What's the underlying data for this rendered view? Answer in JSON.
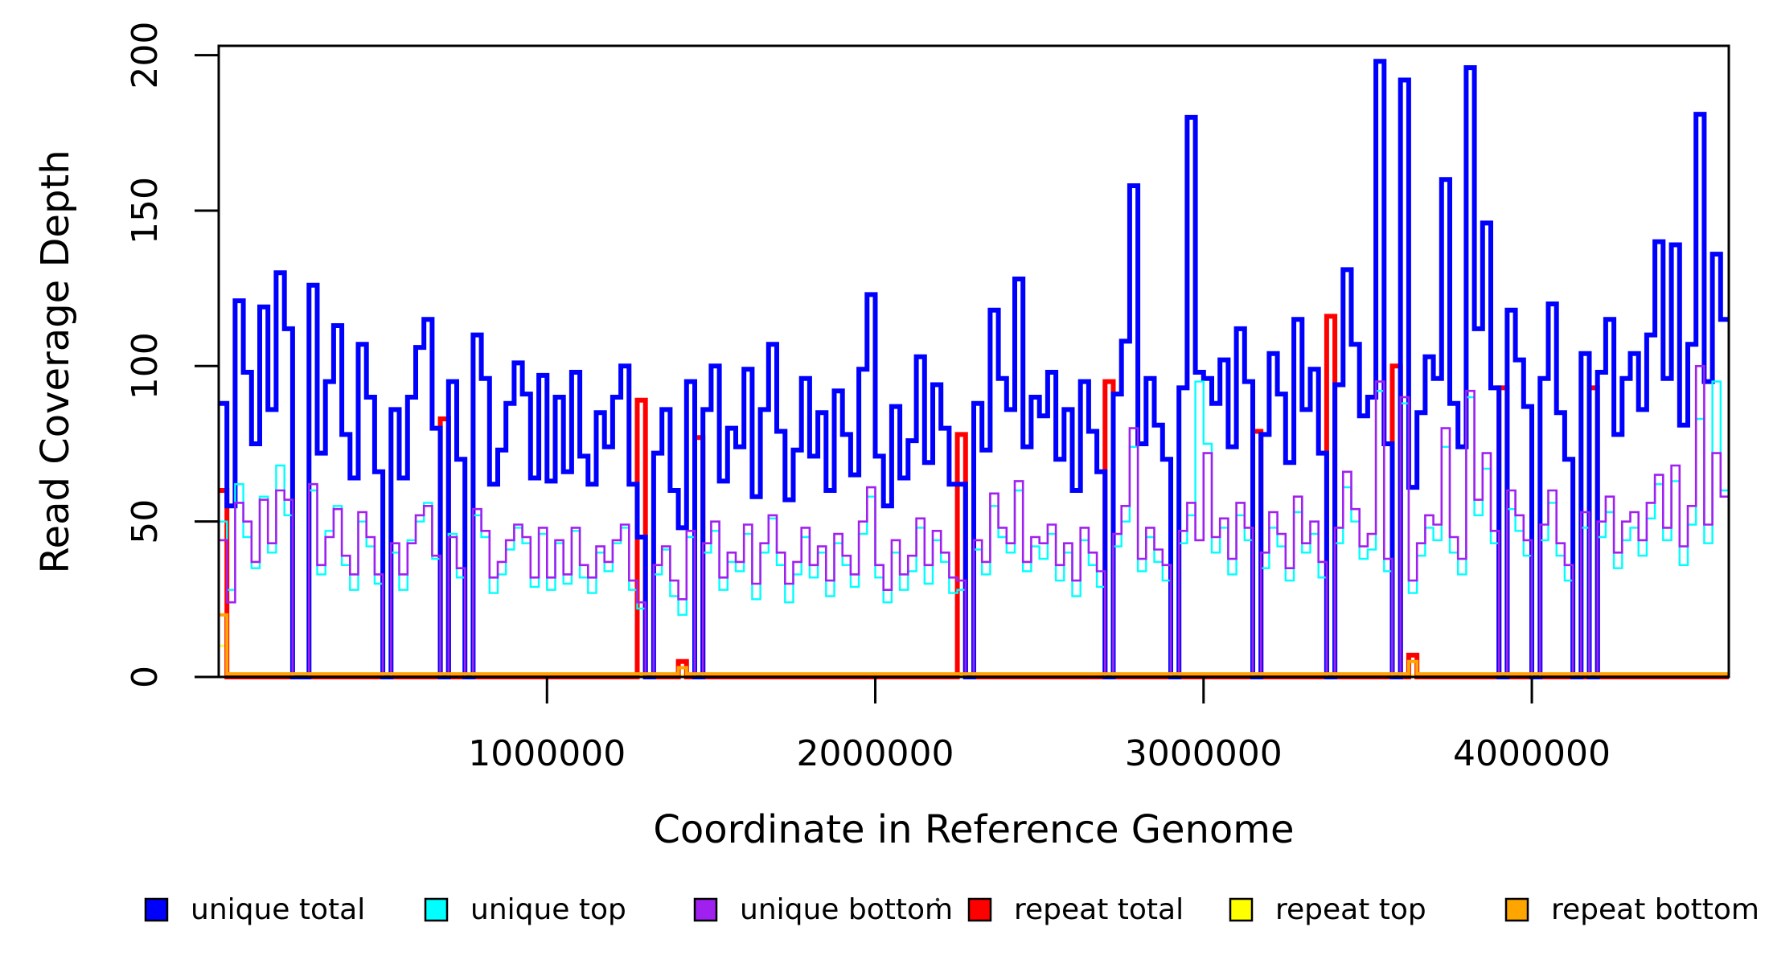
{
  "chart_data": {
    "type": "line",
    "subtype": "step",
    "title": "",
    "xlabel": "Coordinate in Reference Genome",
    "ylabel": "Read Coverage Depth",
    "xlim": [
      0,
      4600000
    ],
    "ylim": [
      0,
      203
    ],
    "grid": false,
    "legend_position": "bottom",
    "x_bin_size": 25000,
    "n_bins": 184,
    "x_ticks": [
      {
        "value": 1000000,
        "label": "1000000"
      },
      {
        "value": 2000000,
        "label": "2000000"
      },
      {
        "value": 3000000,
        "label": "3000000"
      },
      {
        "value": 4000000,
        "label": "4000000"
      }
    ],
    "y_ticks": [
      {
        "value": 0,
        "label": "0"
      },
      {
        "value": 50,
        "label": "50"
      },
      {
        "value": 100,
        "label": "100"
      },
      {
        "value": 150,
        "label": "150"
      },
      {
        "value": 200,
        "label": "200"
      }
    ],
    "series": [
      {
        "name": "unique total",
        "color": "#0000FF",
        "line_width": 6,
        "values": [
          88,
          55,
          121,
          98,
          75,
          119,
          86,
          130,
          112,
          0,
          0,
          126,
          72,
          95,
          113,
          78,
          64,
          107,
          90,
          66,
          0,
          86,
          64,
          90,
          106,
          115,
          80,
          0,
          95,
          70,
          0,
          110,
          96,
          62,
          73,
          88,
          101,
          91,
          64,
          97,
          63,
          90,
          66,
          98,
          71,
          62,
          85,
          74,
          90,
          100,
          62,
          45,
          0,
          72,
          86,
          60,
          48,
          95,
          0,
          86,
          100,
          63,
          80,
          74,
          99,
          58,
          86,
          107,
          79,
          57,
          73,
          96,
          71,
          85,
          60,
          92,
          78,
          65,
          99,
          123,
          71,
          55,
          87,
          64,
          76,
          103,
          69,
          94,
          80,
          62,
          62,
          0,
          88,
          73,
          118,
          96,
          86,
          128,
          74,
          90,
          84,
          98,
          70,
          86,
          60,
          95,
          79,
          66,
          0,
          91,
          108,
          158,
          75,
          96,
          81,
          70,
          0,
          93,
          180,
          98,
          96,
          88,
          102,
          74,
          112,
          95,
          0,
          78,
          104,
          91,
          69,
          115,
          86,
          99,
          72,
          0,
          94,
          131,
          107,
          84,
          90,
          198,
          75,
          0,
          192,
          61,
          85,
          103,
          96,
          160,
          88,
          74,
          196,
          112,
          146,
          93,
          0,
          118,
          102,
          87,
          0,
          96,
          120,
          85,
          70,
          0,
          104,
          0,
          98,
          115,
          78,
          96,
          104,
          86,
          110,
          140,
          96,
          139,
          81,
          107,
          181,
          95,
          136,
          115
        ]
      },
      {
        "name": "unique top",
        "color": "#00FFFF",
        "line_width": 2.4,
        "values": [
          50,
          28,
          62,
          45,
          35,
          58,
          40,
          68,
          52,
          0,
          0,
          60,
          33,
          47,
          55,
          36,
          28,
          50,
          42,
          30,
          0,
          40,
          28,
          44,
          50,
          56,
          38,
          0,
          46,
          32,
          0,
          52,
          45,
          27,
          33,
          41,
          48,
          43,
          29,
          46,
          28,
          43,
          30,
          47,
          32,
          27,
          40,
          34,
          43,
          48,
          28,
          22,
          0,
          33,
          41,
          26,
          20,
          45,
          0,
          40,
          47,
          28,
          37,
          34,
          46,
          25,
          40,
          51,
          36,
          24,
          33,
          45,
          32,
          40,
          26,
          43,
          36,
          29,
          46,
          58,
          32,
          24,
          40,
          28,
          34,
          48,
          30,
          44,
          37,
          27,
          28,
          0,
          41,
          33,
          55,
          45,
          40,
          60,
          34,
          42,
          38,
          46,
          31,
          40,
          26,
          44,
          36,
          29,
          0,
          42,
          50,
          74,
          34,
          45,
          37,
          31,
          0,
          43,
          52,
          95,
          75,
          40,
          48,
          33,
          52,
          44,
          0,
          35,
          48,
          42,
          31,
          53,
          40,
          46,
          32,
          0,
          43,
          61,
          50,
          38,
          41,
          92,
          34,
          0,
          88,
          27,
          39,
          48,
          44,
          74,
          40,
          33,
          90,
          52,
          67,
          43,
          0,
          54,
          47,
          39,
          0,
          44,
          56,
          39,
          31,
          0,
          48,
          0,
          45,
          53,
          35,
          44,
          48,
          39,
          51,
          62,
          44,
          63,
          36,
          49,
          83,
          43,
          95,
          60
        ]
      },
      {
        "name": "unique bottom",
        "color": "#A020F0",
        "line_width": 2.6,
        "values": [
          44,
          24,
          56,
          50,
          37,
          57,
          43,
          60,
          57,
          0,
          0,
          62,
          36,
          45,
          54,
          39,
          33,
          53,
          45,
          33,
          0,
          43,
          33,
          43,
          52,
          55,
          39,
          0,
          45,
          35,
          0,
          54,
          47,
          32,
          37,
          44,
          49,
          45,
          32,
          48,
          32,
          44,
          33,
          48,
          36,
          32,
          42,
          37,
          44,
          49,
          31,
          24,
          0,
          36,
          42,
          31,
          25,
          47,
          0,
          43,
          50,
          32,
          40,
          37,
          49,
          30,
          43,
          52,
          40,
          30,
          37,
          48,
          36,
          42,
          31,
          46,
          39,
          33,
          50,
          61,
          36,
          28,
          44,
          33,
          39,
          51,
          36,
          47,
          40,
          32,
          31,
          0,
          44,
          37,
          59,
          48,
          43,
          63,
          37,
          45,
          43,
          49,
          36,
          43,
          31,
          48,
          40,
          34,
          0,
          46,
          55,
          80,
          38,
          48,
          41,
          36,
          0,
          47,
          56,
          44,
          72,
          45,
          51,
          38,
          56,
          48,
          0,
          40,
          53,
          46,
          35,
          58,
          43,
          50,
          37,
          0,
          48,
          66,
          54,
          42,
          46,
          95,
          38,
          0,
          90,
          31,
          43,
          52,
          49,
          80,
          45,
          38,
          92,
          57,
          72,
          47,
          0,
          60,
          52,
          44,
          0,
          49,
          60,
          43,
          36,
          0,
          53,
          0,
          50,
          58,
          40,
          50,
          53,
          44,
          56,
          65,
          48,
          68,
          42,
          55,
          100,
          49,
          72,
          58
        ]
      },
      {
        "name": "repeat total",
        "color": "#FF0000",
        "line_width": 6,
        "base": 0,
        "spikes": {
          "0": 60,
          "27": 83,
          "51": 89,
          "56": 5,
          "58": 77,
          "90": 78,
          "108": 95,
          "126": 79,
          "135": 116,
          "143": 100,
          "145": 7,
          "156": 93,
          "167": 93
        }
      },
      {
        "name": "repeat top",
        "color": "#FFFF00",
        "line_width": 2.2,
        "base": 0.5,
        "spikes": {
          "0": 10
        }
      },
      {
        "name": "repeat bottom",
        "color": "#FFA500",
        "line_width": 4,
        "base": 1,
        "spikes": {
          "0": 20,
          "56": 3,
          "145": 5
        }
      }
    ]
  },
  "legend": {
    "items": [
      {
        "label": "unique total",
        "color": "#0000FF"
      },
      {
        "label": "unique top",
        "color": "#00FFFF"
      },
      {
        "label": "unique bottom",
        "color": "#A020F0"
      },
      {
        "label": "repeat total",
        "color": "#FF0000"
      },
      {
        "label": "repeat top",
        "color": "#FFFF00"
      },
      {
        "label": "repeat bottom",
        "color": "#FFA500"
      }
    ],
    "swatch_border_color": "#000000"
  },
  "colors": {
    "axis": "#000000",
    "background": "#FFFFFF"
  }
}
